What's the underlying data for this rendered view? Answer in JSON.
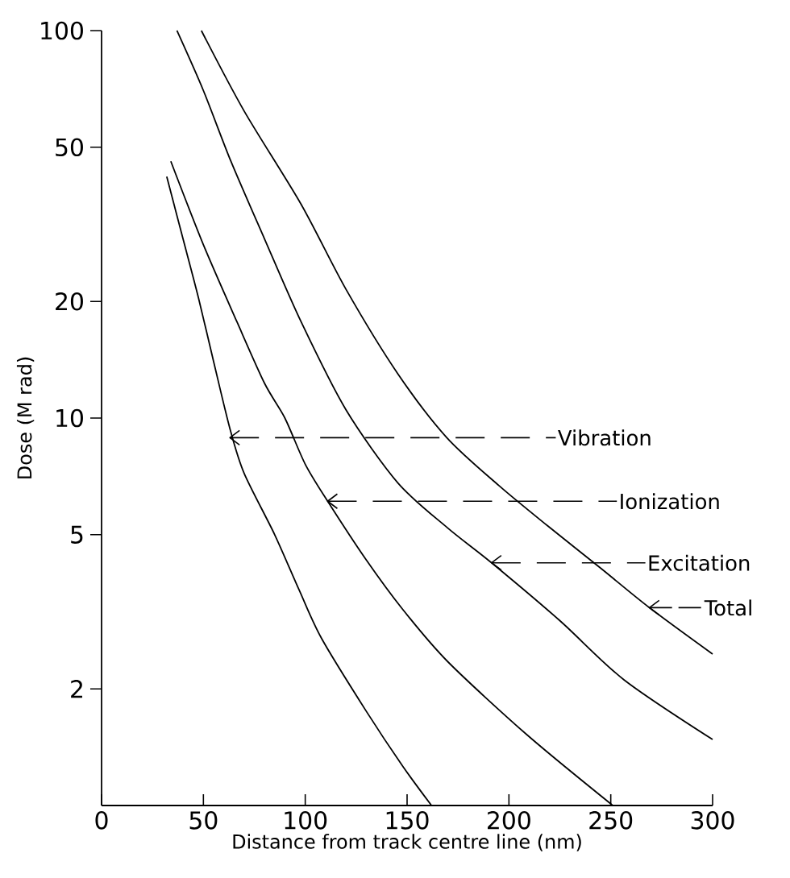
{
  "chart_data": {
    "type": "line",
    "xlabel": "Distance from track centre line (nm)",
    "ylabel": "Dose (M rad)",
    "log": "y",
    "marker": "none",
    "line_style": "solid",
    "xlim": [
      0,
      300
    ],
    "ylim": [
      1,
      100
    ],
    "xticks": [
      0,
      50,
      100,
      150,
      200,
      250,
      300
    ],
    "yticks": [
      2,
      5,
      10,
      20,
      50,
      100
    ],
    "series": [
      {
        "color": "#000000",
        "x": [
          32,
          40,
          47.5,
          55,
          63,
          70,
          85,
          97,
          108,
          130,
          148,
          162
        ],
        "values": [
          42,
          29,
          20.5,
          14,
          9.4,
          7.2,
          5,
          3.6,
          2.7,
          1.75,
          1.26,
          1.0
        ]
      },
      {
        "color": "#000000",
        "x": [
          34,
          50,
          66.5,
          80,
          90,
          100,
          111,
          130,
          148,
          170,
          209,
          251
        ],
        "values": [
          46,
          28,
          17.7,
          12.3,
          10,
          7.6,
          6.1,
          4.3,
          3.2,
          2.35,
          1.52,
          1.0
        ]
      },
      {
        "color": "#000000",
        "x": [
          37,
          50,
          63.5,
          80,
          98,
          120,
          145.5,
          170,
          191.5,
          225,
          256.5,
          300
        ],
        "values": [
          100,
          70,
          46,
          29,
          17.7,
          10.5,
          6.8,
          5.2,
          4.23,
          3.0,
          2.11,
          1.48
        ]
      },
      {
        "color": "#000000",
        "x": [
          49,
          70,
          98,
          120,
          145.5,
          169.5,
          195,
          219,
          245,
          269,
          300
        ],
        "values": [
          100,
          62,
          35.6,
          21.5,
          13,
          8.9,
          6.7,
          5.27,
          4.1,
          3.24,
          2.46
        ]
      }
    ],
    "annotations": [
      {
        "text": "Vibration",
        "x": 63,
        "y": 8.9
      },
      {
        "text": "Ionization",
        "x": 111,
        "y": 6.1
      },
      {
        "text": "Excitation",
        "x": 191.5,
        "y": 4.23
      },
      {
        "text": "Total",
        "x": 269,
        "y": 3.24
      }
    ]
  }
}
